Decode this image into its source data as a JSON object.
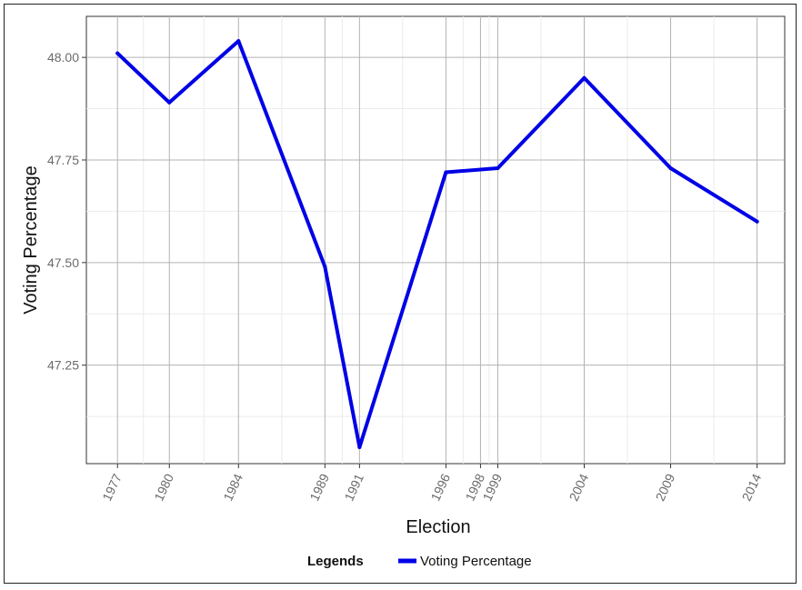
{
  "chart_data": {
    "type": "line",
    "title": "",
    "xlabel": "Election",
    "ylabel": "Voting Percentage",
    "x": [
      1977,
      1980,
      1984,
      1989,
      1991,
      1996,
      1998,
      1999,
      2004,
      2009,
      2014
    ],
    "x_tick_labels": [
      "1977",
      "1980",
      "1984",
      "1989",
      "1991",
      "1996",
      "1998",
      "1999",
      "2004",
      "2009",
      "2014"
    ],
    "y_ticks": [
      47.25,
      47.5,
      47.75,
      48.0
    ],
    "y_tick_labels": [
      "47.25",
      "47.50",
      "47.75",
      "48.00"
    ],
    "xlim": [
      1975.2,
      2015.6
    ],
    "ylim": [
      47.01,
      48.1
    ],
    "grid": true,
    "legend": {
      "title": "Legends",
      "placement": "bottom"
    },
    "series": [
      {
        "name": "Voting Percentage",
        "color": "#0000e6",
        "x": [
          1977,
          1980,
          1984,
          1989,
          1991,
          1996,
          1999,
          2004,
          2009,
          2014
        ],
        "values": [
          48.01,
          47.89,
          48.04,
          47.49,
          47.05,
          47.72,
          47.73,
          47.95,
          47.73,
          47.6
        ]
      }
    ]
  }
}
